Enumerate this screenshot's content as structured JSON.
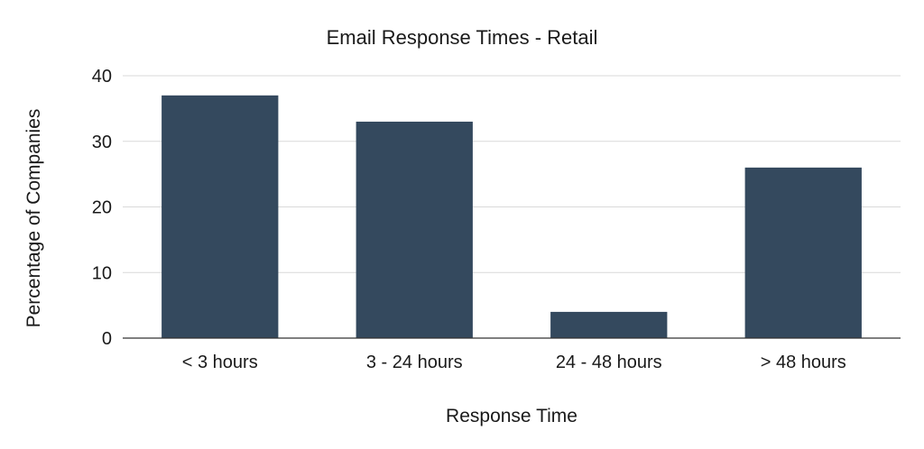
{
  "chart_data": {
    "type": "bar",
    "title": "Email Response Times - Retail",
    "xlabel": "Response Time",
    "ylabel": "Percentage of Companies",
    "categories": [
      "< 3 hours",
      "3 - 24 hours",
      "24 - 48 hours",
      "> 48 hours"
    ],
    "values": [
      37,
      33,
      4,
      26
    ],
    "ylim": [
      0,
      40
    ],
    "yticks": [
      0,
      10,
      20,
      30,
      40
    ],
    "grid": true,
    "legend": "none",
    "colors": {
      "bar": "#34495e",
      "grid": "#d9d9d9",
      "axis": "#333333",
      "text": "#1a1a1a"
    }
  }
}
